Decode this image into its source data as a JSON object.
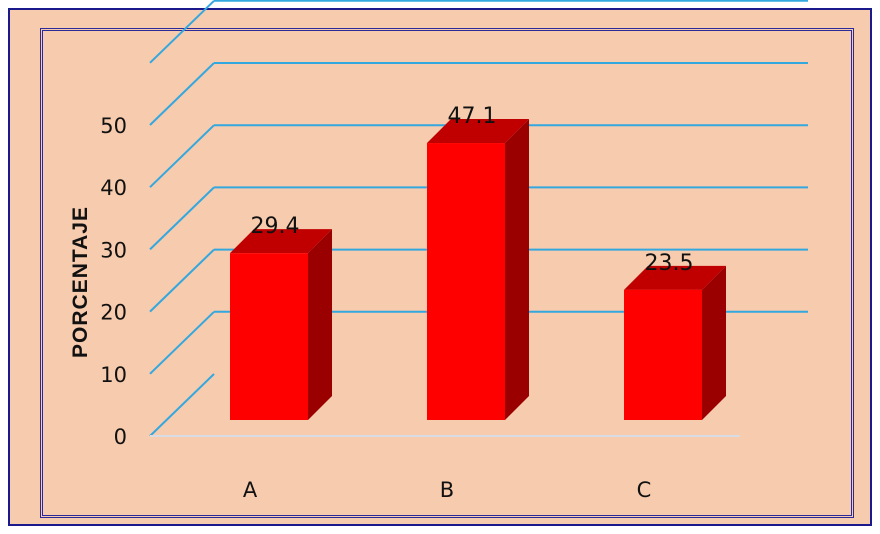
{
  "chart_data": {
    "type": "bar",
    "style": "3d",
    "title": "",
    "xlabel": "",
    "ylabel": "PORCENTAJE",
    "categories": [
      "A",
      "B",
      "C"
    ],
    "values": [
      29.4,
      47.1,
      23.5
    ],
    "data_labels": [
      "29.4",
      "47.1",
      "23.5"
    ],
    "ylim": [
      0,
      50
    ],
    "yticks": [
      0,
      10,
      20,
      30,
      40,
      50
    ],
    "ytick_labels": [
      "0",
      "10",
      "20",
      "30",
      "40",
      "50"
    ],
    "grid": true,
    "legend": "none",
    "colors": {
      "bar_front": "#ff0000",
      "bar_top": "#c00000",
      "bar_side": "#9a0000",
      "gridline": "#33a8df",
      "floor": "#d9dde3",
      "background": "#f7cbae",
      "border": "#1a1a8c"
    }
  }
}
